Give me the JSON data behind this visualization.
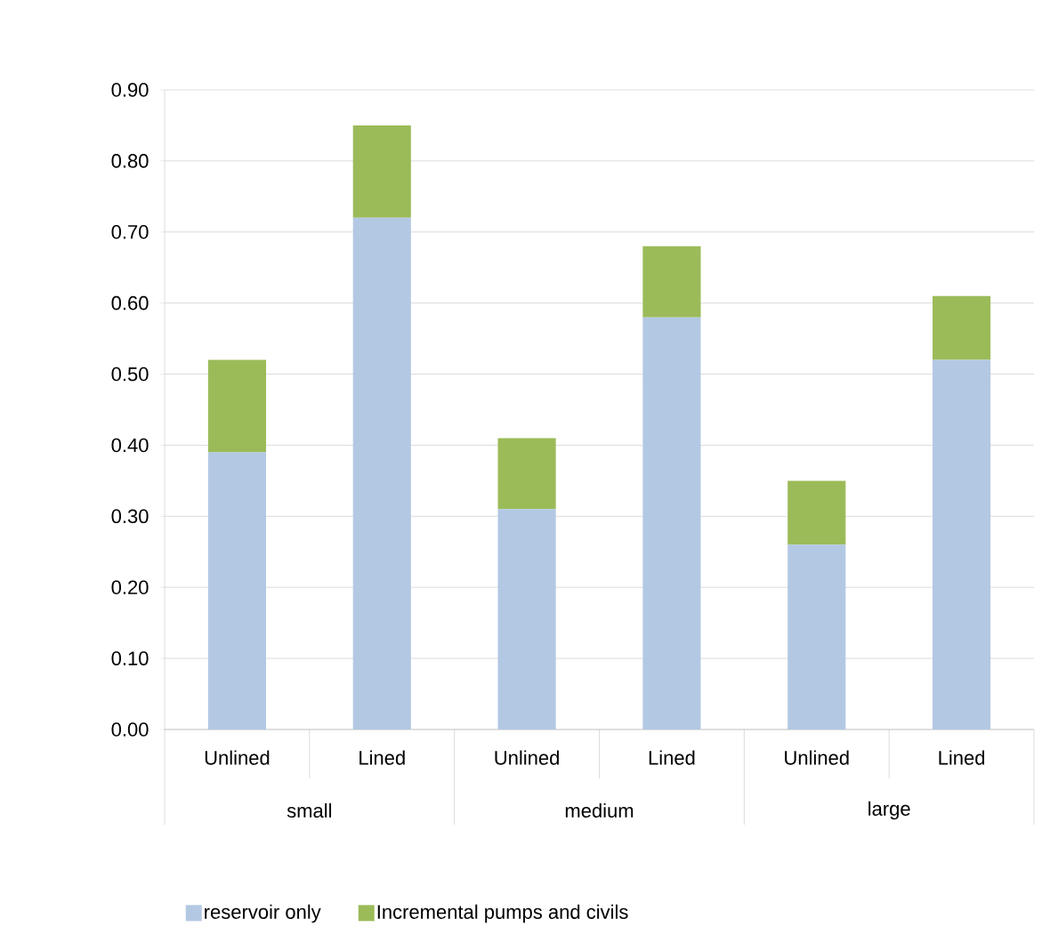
{
  "chart_data": {
    "type": "bar",
    "stacked": true,
    "categories": [
      "Unlined",
      "Lined",
      "Unlined",
      "Lined",
      "Unlined",
      "Lined"
    ],
    "series": [
      {
        "name": "reservoir only",
        "color": "#b3c8e3",
        "values": [
          0.39,
          0.72,
          0.31,
          0.58,
          0.26,
          0.52
        ]
      },
      {
        "name": "Incremental pumps and civils",
        "color": "#9bbb59",
        "values": [
          0.13,
          0.13,
          0.1,
          0.1,
          0.09,
          0.09
        ]
      }
    ],
    "ylim": [
      0,
      0.9
    ],
    "yticks": [
      {
        "value": 0,
        "label": "0.00"
      },
      {
        "value": 0.1,
        "label": "0.10"
      },
      {
        "value": 0.2,
        "label": "0.20"
      },
      {
        "value": 0.3,
        "label": "0.30"
      },
      {
        "value": 0.4,
        "label": "0.40"
      },
      {
        "value": 0.5,
        "label": "0.50"
      },
      {
        "value": 0.6,
        "label": "0.60"
      },
      {
        "value": 0.7,
        "label": "0.70"
      },
      {
        "value": 0.8,
        "label": "0.80"
      },
      {
        "value": 0.9,
        "label": "0.90"
      }
    ],
    "grid": "y",
    "legend": "bottom",
    "annotations": [
      "small",
      "medium",
      "large"
    ]
  }
}
